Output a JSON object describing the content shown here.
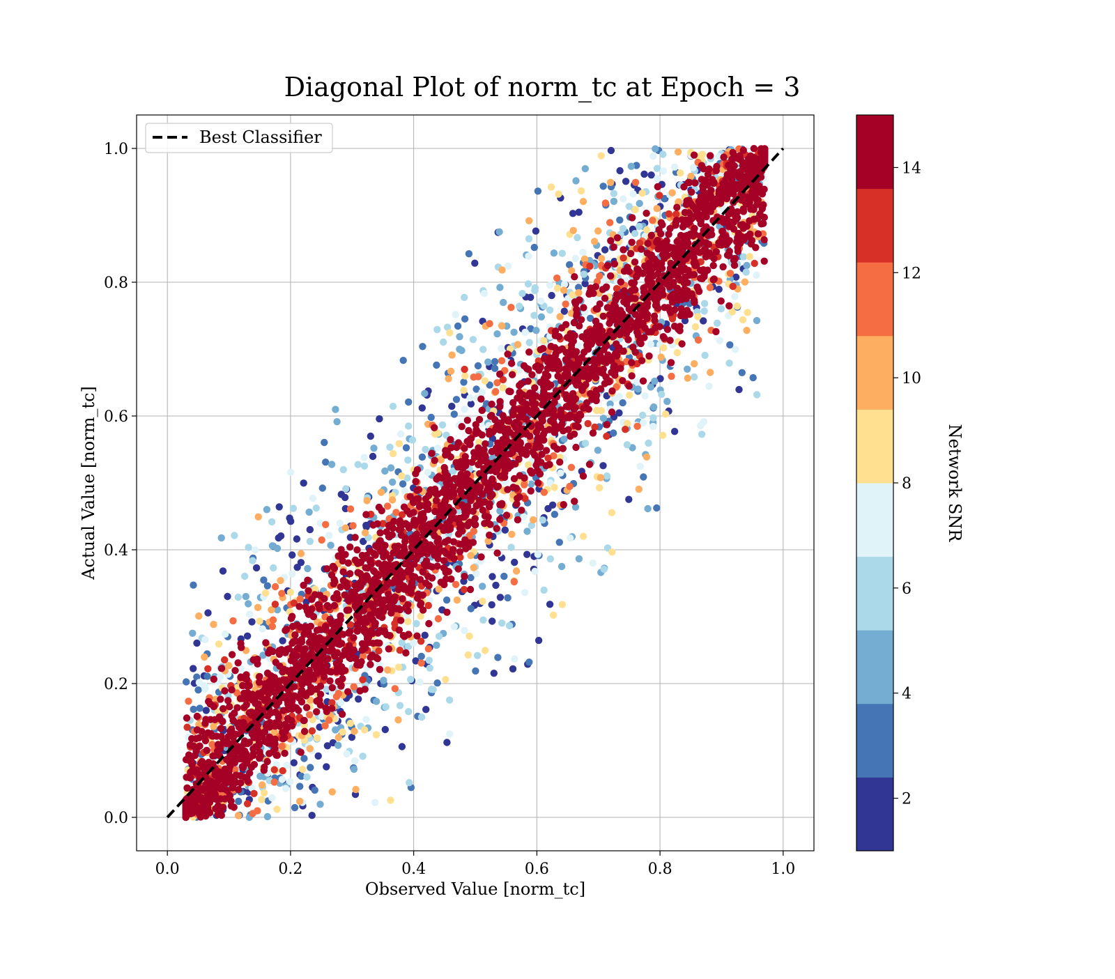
{
  "chart_data": {
    "type": "scatter",
    "title": "Diagonal Plot of norm_tc at Epoch = 3",
    "xlabel": "Observed Value [norm_tc]",
    "ylabel": "Actual Value [norm_tc]",
    "xlim": [
      -0.05,
      1.05
    ],
    "ylim": [
      -0.05,
      1.05
    ],
    "xticks": [
      "0.0",
      "0.2",
      "0.4",
      "0.6",
      "0.8",
      "1.0"
    ],
    "yticks": [
      "0.0",
      "0.2",
      "0.4",
      "0.6",
      "0.8",
      "1.0"
    ],
    "grid": true,
    "legend": {
      "location": "upper left",
      "entries": [
        {
          "label": "Best Classifier",
          "style": "dashed",
          "color": "#000000"
        }
      ]
    },
    "reference_line": {
      "label": "Best Classifier",
      "x": [
        0.0,
        1.0
      ],
      "y": [
        0.0,
        1.0
      ]
    },
    "colorbar": {
      "label": "Network SNR",
      "range": [
        1,
        15
      ],
      "ticks": [
        "2",
        "4",
        "6",
        "8",
        "10",
        "12",
        "14"
      ],
      "levels": [
        {
          "from": 1,
          "to": 2.4,
          "color": "#313695"
        },
        {
          "from": 2.4,
          "to": 3.8,
          "color": "#4575b4"
        },
        {
          "from": 3.8,
          "to": 5.2,
          "color": "#74add1"
        },
        {
          "from": 5.2,
          "to": 6.6,
          "color": "#abd9e9"
        },
        {
          "from": 6.6,
          "to": 8.0,
          "color": "#e0f3f8"
        },
        {
          "from": 8.0,
          "to": 9.4,
          "color": "#fee090"
        },
        {
          "from": 9.4,
          "to": 10.8,
          "color": "#fdae61"
        },
        {
          "from": 10.8,
          "to": 12.2,
          "color": "#f46d43"
        },
        {
          "from": 12.2,
          "to": 13.6,
          "color": "#d73027"
        },
        {
          "from": 13.6,
          "to": 15,
          "color": "#a50026"
        }
      ]
    },
    "scatter_summary": {
      "x_range": [
        0.02,
        0.97
      ],
      "y_range": [
        0.0,
        1.0
      ],
      "description_of_distribution": "dense high-SNR band along y=x, lower SNR spreads further from diagonal",
      "band_halfwidth_by_snr": [
        {
          "snr": 2,
          "halfwidth": 0.33
        },
        {
          "snr": 4,
          "halfwidth": 0.3
        },
        {
          "snr": 6,
          "halfwidth": 0.27
        },
        {
          "snr": 8,
          "halfwidth": 0.23
        },
        {
          "snr": 10,
          "halfwidth": 0.19
        },
        {
          "snr": 12,
          "halfwidth": 0.15
        },
        {
          "snr": 14,
          "halfwidth": 0.09
        }
      ]
    }
  }
}
